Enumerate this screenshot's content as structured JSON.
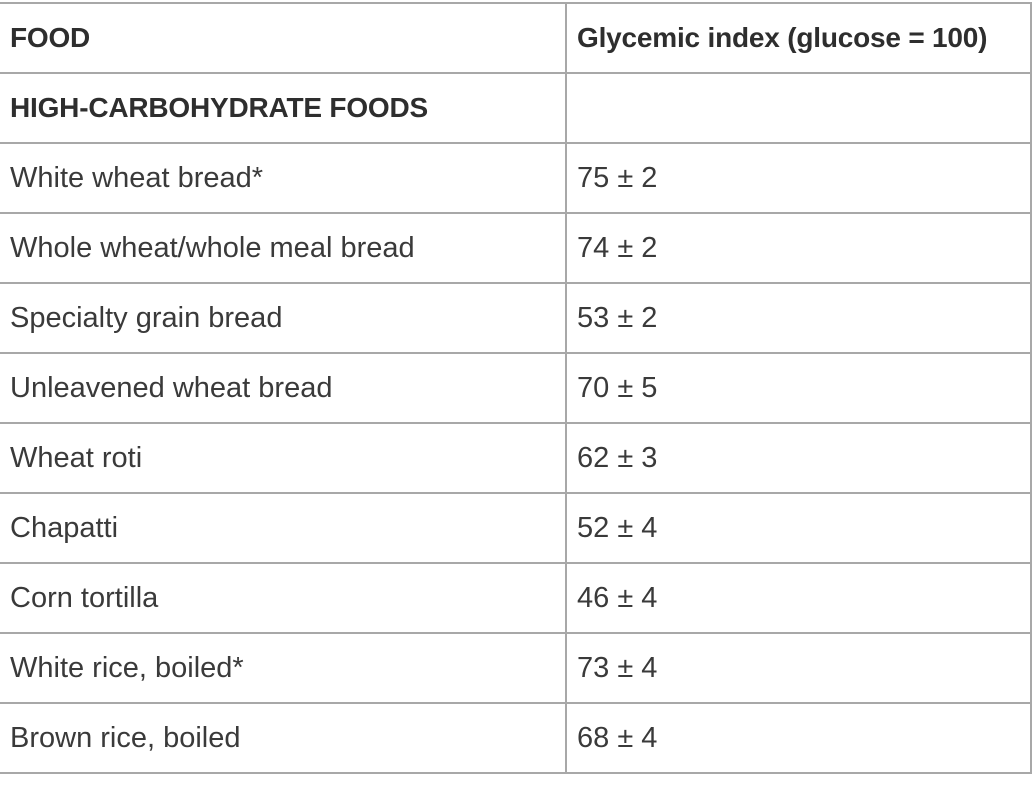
{
  "table": {
    "header": {
      "food": "FOOD",
      "gi": "Glycemic index (glucose = 100)"
    },
    "section": {
      "title": "HIGH-CARBOHYDRATE FOODS",
      "value": ""
    },
    "rows": [
      {
        "food": "White wheat bread*",
        "gi": "75 ± 2"
      },
      {
        "food": "Whole wheat/whole meal bread",
        "gi": "74 ± 2"
      },
      {
        "food": "Specialty grain bread",
        "gi": "53 ± 2"
      },
      {
        "food": "Unleavened wheat bread",
        "gi": "70 ± 5"
      },
      {
        "food": "Wheat roti",
        "gi": "62 ± 3"
      },
      {
        "food": "Chapatti",
        "gi": "52 ± 4"
      },
      {
        "food": "Corn tortilla",
        "gi": "46 ± 4"
      },
      {
        "food": "White rice, boiled*",
        "gi": "73 ± 4"
      },
      {
        "food": "Brown rice, boiled",
        "gi": "68 ± 4"
      }
    ]
  }
}
